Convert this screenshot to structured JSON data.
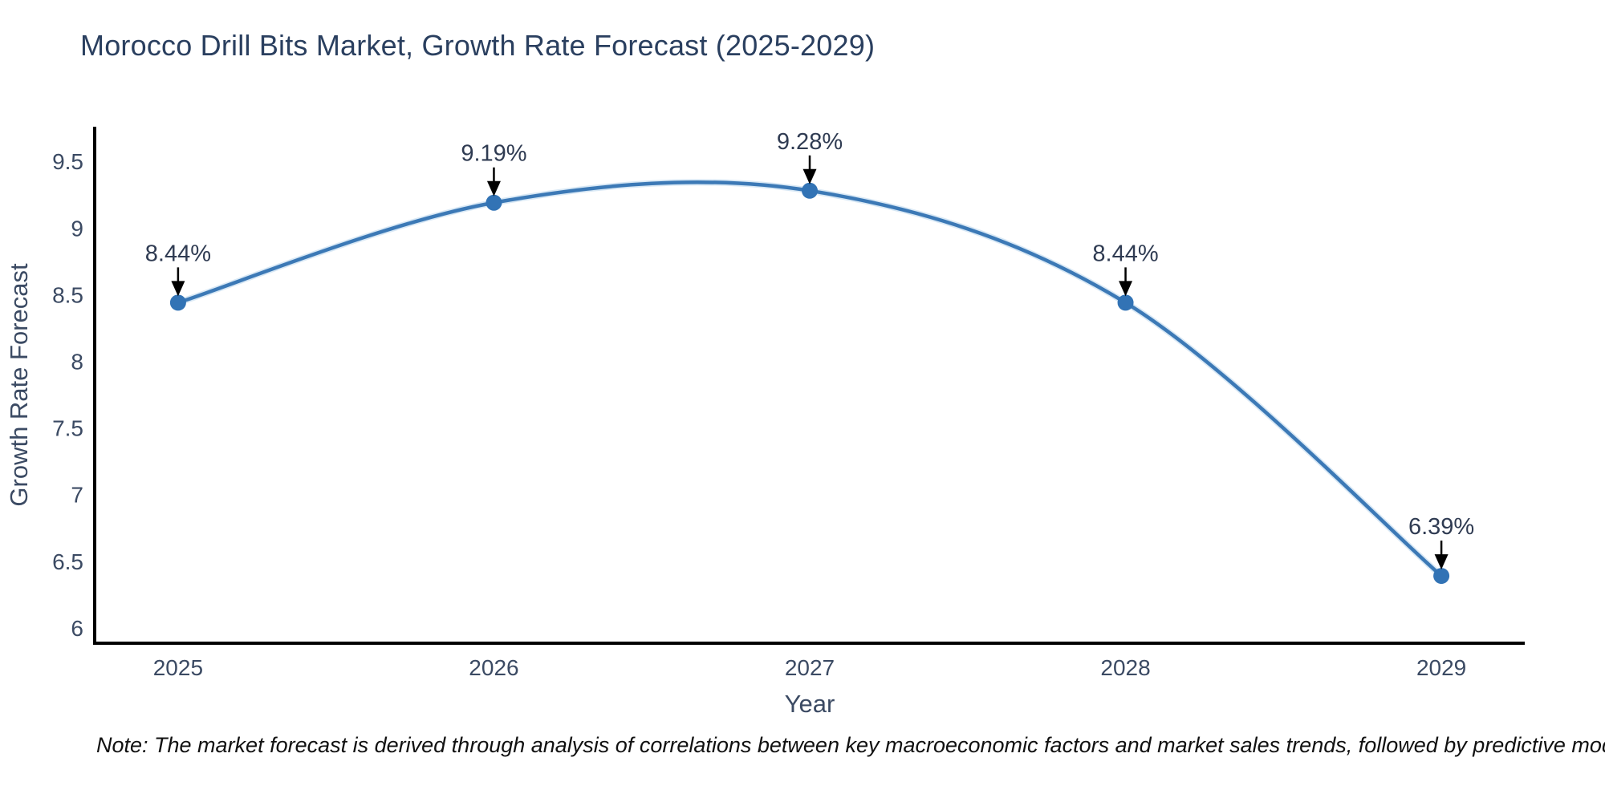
{
  "title": "Morocco Drill Bits Market, Growth Rate Forecast (2025-2029)",
  "note": "Note: The market forecast is derived through analysis of correlations between key macroeconomic factors and market sales trends, followed by predictive modeling to project future sales",
  "chart_data": {
    "type": "line",
    "line_shape": "spline",
    "title": "Morocco Drill Bits Market, Growth Rate Forecast (2025-2029)",
    "xlabel": "Year",
    "ylabel": "Growth Rate Forecast",
    "x": [
      2025,
      2026,
      2027,
      2028,
      2029
    ],
    "values": [
      8.44,
      9.19,
      9.28,
      8.44,
      6.39
    ],
    "point_labels": [
      "8.44%",
      "9.19%",
      "9.28%",
      "8.44%",
      "6.39%"
    ],
    "yticks": [
      6,
      6.5,
      7,
      7.5,
      8,
      8.5,
      9,
      9.5
    ],
    "ytick_labels": [
      "6",
      "6.5",
      "7",
      "7.5",
      "8",
      "8.5",
      "9",
      "9.5"
    ],
    "xtick_labels": [
      "2025",
      "2026",
      "2027",
      "2028",
      "2029"
    ],
    "ylim": [
      5.885,
      9.76
    ],
    "xlim": [
      2024.736,
      2029.264
    ],
    "grid": false,
    "legend": false,
    "markers": true,
    "annotations_have_arrows": true,
    "colors": {
      "line": "#3c79b6",
      "line_halo": "#a9cbe8",
      "marker": "#3273b5",
      "axis_line": "#000000",
      "title_text": "#2a3f5f",
      "tick_text": "#3b4a63",
      "axis_title_text": "#3b4a63",
      "annotation_text": "#2f3b52",
      "arrow": "#000000",
      "background": "#ffffff"
    }
  }
}
